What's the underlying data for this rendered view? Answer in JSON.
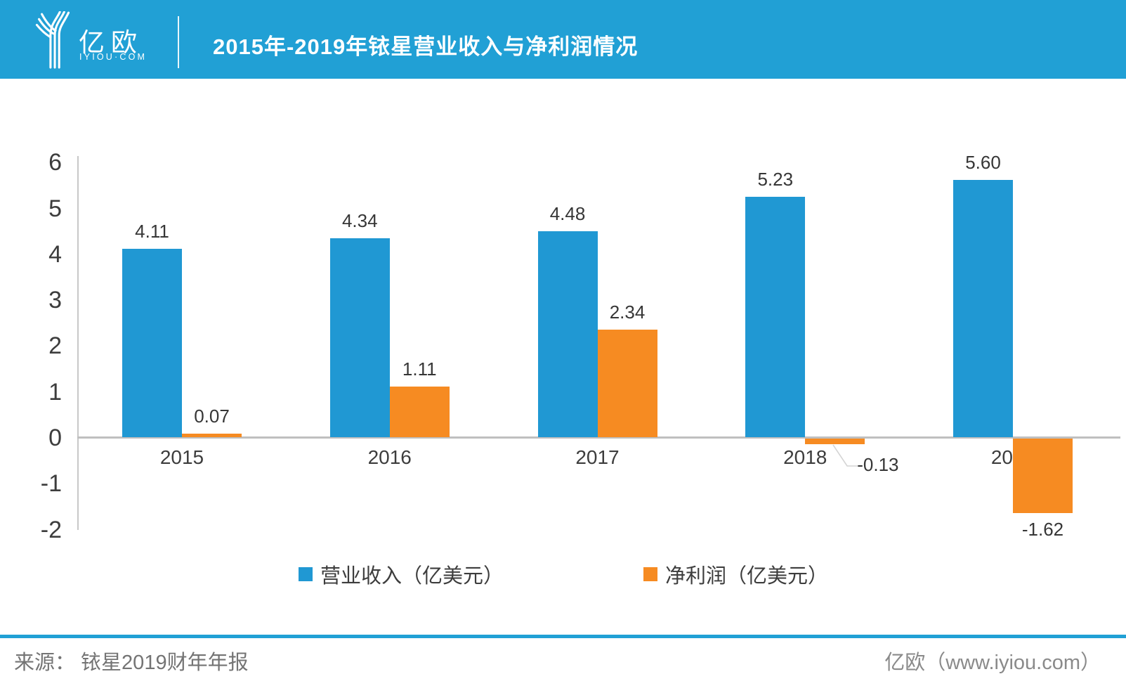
{
  "header": {
    "logo_name": "亿欧",
    "logo_domain": "IYIOU·COM",
    "title": "2015年-2019年铱星营业收入与净利润情况"
  },
  "theme": {
    "banner_blue": "#21A0D5",
    "revenue_blue": "#2098D3",
    "profit_orange": "#F68B22"
  },
  "chart_data": {
    "type": "bar",
    "title": "2015年-2019年铱星营业收入与净利润情况",
    "categories": [
      "2015",
      "2016",
      "2017",
      "2018",
      "2019"
    ],
    "series": [
      {
        "name": "营业收入（亿美元）",
        "color": "#2098D3",
        "values": [
          4.11,
          4.34,
          4.48,
          5.23,
          5.6
        ],
        "labels": [
          "4.11",
          "4.34",
          "4.48",
          "5.23",
          "5.60"
        ]
      },
      {
        "name": "净利润（亿美元）",
        "color": "#F68B22",
        "values": [
          0.07,
          1.11,
          2.34,
          -0.13,
          -1.62
        ],
        "labels": [
          "0.07",
          "1.11",
          "2.34",
          "-0.13",
          "-1.62"
        ]
      }
    ],
    "xlabel": "",
    "ylabel": "",
    "ylim": [
      -2,
      6
    ],
    "yticks": [
      6,
      5,
      4,
      3,
      2,
      1,
      0,
      -1,
      -2
    ],
    "grid": false,
    "legend_position": "bottom"
  },
  "footer": {
    "source": "来源： 铱星2019财年年报",
    "brand": "亿欧（www.iyiou.com）"
  }
}
